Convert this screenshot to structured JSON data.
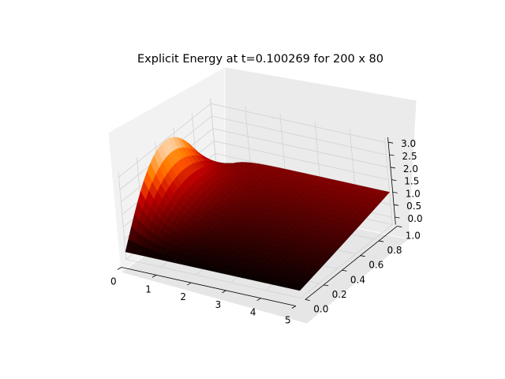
{
  "chart_data": {
    "type": "surface3d",
    "title": "Explicit Energy at t=0.100269 for 200 x 80",
    "colormap": "gist_heat",
    "x": {
      "range": [
        0,
        5
      ],
      "ticks": [
        0,
        1,
        2,
        3,
        4,
        5
      ],
      "tick_labels": [
        "0",
        "1",
        "2",
        "3",
        "4",
        "5"
      ]
    },
    "y": {
      "range": [
        0,
        1
      ],
      "ticks": [
        0.0,
        0.2,
        0.4,
        0.6,
        0.8,
        1.0
      ],
      "tick_labels": [
        "0.0",
        "0.2",
        "0.4",
        "0.6",
        "0.8",
        "1.0"
      ]
    },
    "z": {
      "range": [
        -0.3,
        3.2
      ],
      "ticks": [
        0.0,
        0.5,
        1.0,
        1.5,
        2.0,
        2.5,
        3.0
      ],
      "tick_labels": [
        "0.0",
        "0.5",
        "1.0",
        "1.5",
        "2.0",
        "2.5",
        "3.0"
      ]
    },
    "surface": {
      "description_values": [
        {
          "x": 0,
          "y": 0.0,
          "z": 0.0
        },
        {
          "x": 0,
          "y": 0.5,
          "z": 3.0
        },
        {
          "x": 0,
          "y": 1.0,
          "z": 1.0
        },
        {
          "x": 2.5,
          "y": 0.5,
          "z": 0.5
        },
        {
          "x": 5,
          "y": 0.0,
          "z": 0.0
        },
        {
          "x": 5,
          "y": 1.0,
          "z": 1.0
        }
      ]
    },
    "grid": true
  }
}
